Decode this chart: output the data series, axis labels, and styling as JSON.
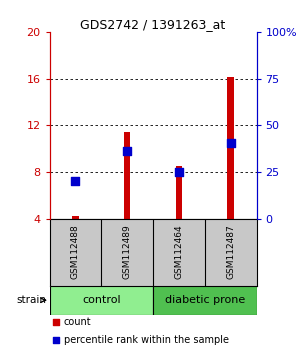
{
  "title": "GDS2742 / 1391263_at",
  "samples": [
    "GSM112488",
    "GSM112489",
    "GSM112464",
    "GSM112487"
  ],
  "group_labels": [
    "control",
    "diabetic prone"
  ],
  "group_colors": [
    "#90EE90",
    "#50C050"
  ],
  "red_values": [
    4.2,
    11.4,
    8.5,
    16.1
  ],
  "blue_values": [
    7.2,
    9.8,
    8.0,
    10.5
  ],
  "ylim_left": [
    4,
    20
  ],
  "yticks_left": [
    4,
    8,
    12,
    16,
    20
  ],
  "ylim_right": [
    0,
    100
  ],
  "yticks_right": [
    0,
    25,
    50,
    75,
    100
  ],
  "left_color": "#CC0000",
  "right_color": "#0000CC",
  "bar_width": 0.13,
  "dot_size": 28,
  "bg_color": "#FFFFFF",
  "label_area_color": "#C8C8C8",
  "strain_label": "strain",
  "legend_count": "count",
  "legend_percentile": "percentile rank within the sample",
  "title_fontsize": 9,
  "sample_fontsize": 6.5,
  "group_fontsize": 8,
  "legend_fontsize": 7
}
